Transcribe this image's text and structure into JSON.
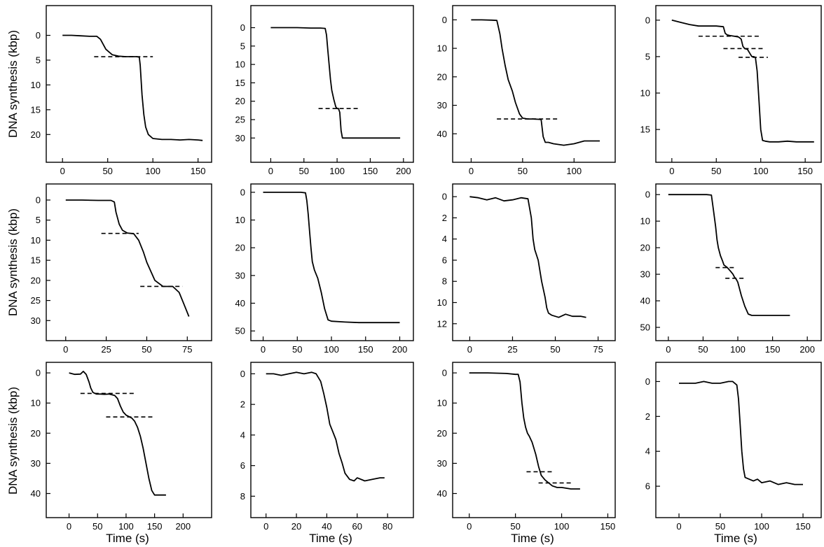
{
  "figure": {
    "ylabel": "DNA synthesis (kbp)",
    "xlabel": "Time (s)"
  },
  "chart_data": [
    {
      "type": "line",
      "row": 0,
      "col": 0,
      "xlim": [
        -18,
        165
      ],
      "ylim": [
        -6,
        25.6
      ],
      "xticks": [
        0,
        50,
        100,
        150
      ],
      "yticks": [
        0,
        5,
        10,
        15,
        20
      ],
      "ylabel_shown": true,
      "xlabel_shown": false,
      "series": [
        {
          "x": [
            0,
            10,
            20,
            30,
            38,
            42,
            48,
            55,
            62,
            70,
            78,
            82,
            85,
            86,
            88,
            90,
            92,
            95,
            100,
            110,
            120,
            130,
            140,
            150,
            155
          ],
          "y": [
            0,
            0,
            0.1,
            0.2,
            0.2,
            0.8,
            2.8,
            3.9,
            4.2,
            4.3,
            4.3,
            4.3,
            4.4,
            6,
            12,
            16,
            18.5,
            20,
            20.8,
            21,
            21,
            21.1,
            21.0,
            21.1,
            21.2
          ]
        }
      ],
      "dashes": [
        {
          "x0": 35,
          "x1": 100,
          "y": 4.3
        }
      ]
    },
    {
      "type": "line",
      "row": 0,
      "col": 1,
      "xlim": [
        -30,
        215
      ],
      "ylim": [
        -6,
        36.6
      ],
      "xticks": [
        0,
        50,
        100,
        150,
        200
      ],
      "yticks": [
        0,
        5,
        10,
        15,
        20,
        25,
        30
      ],
      "ylabel_shown": false,
      "xlabel_shown": false,
      "series": [
        {
          "x": [
            0,
            20,
            40,
            60,
            75,
            82,
            84,
            86,
            88,
            90,
            92,
            95,
            98,
            100,
            102,
            104,
            106,
            108,
            112,
            130,
            150,
            170,
            190,
            195
          ],
          "y": [
            0,
            0,
            0,
            0.1,
            0.1,
            0.2,
            2,
            6,
            10,
            14,
            17,
            19.5,
            21.5,
            22,
            22,
            23,
            28,
            30,
            30,
            30,
            30,
            30,
            30,
            30
          ]
        }
      ],
      "dashes": [
        {
          "x0": 72,
          "x1": 132,
          "y": 22
        }
      ]
    },
    {
      "type": "line",
      "row": 0,
      "col": 2,
      "xlim": [
        -18,
        140
      ],
      "ylim": [
        -5,
        50
      ],
      "xticks": [
        0,
        50,
        100
      ],
      "yticks": [
        0,
        10,
        20,
        30,
        40
      ],
      "ylabel_shown": false,
      "xlabel_shown": false,
      "series": [
        {
          "x": [
            0,
            10,
            20,
            25,
            28,
            30,
            33,
            36,
            40,
            43,
            47,
            50,
            55,
            60,
            65,
            68,
            70,
            72,
            75,
            80,
            90,
            100,
            110,
            120,
            125
          ],
          "y": [
            0,
            0,
            0.1,
            0.2,
            5,
            10,
            16,
            21,
            25,
            29,
            33,
            34.5,
            34.8,
            34.8,
            34.9,
            35,
            41,
            43,
            43,
            43.5,
            44,
            43.5,
            42.5,
            42.5,
            42.5
          ]
        }
      ],
      "dashes": [
        {
          "x0": 25,
          "x1": 85,
          "y": 34.8
        }
      ]
    },
    {
      "type": "line",
      "row": 0,
      "col": 3,
      "xlim": [
        -18,
        168
      ],
      "ylim": [
        -2,
        19.5
      ],
      "xticks": [
        0,
        50,
        100,
        150
      ],
      "yticks": [
        0,
        5,
        10,
        15
      ],
      "ylabel_shown": false,
      "xlabel_shown": false,
      "series": [
        {
          "x": [
            0,
            10,
            20,
            30,
            40,
            50,
            58,
            60,
            62,
            65,
            70,
            75,
            78,
            80,
            82,
            85,
            88,
            90,
            92,
            94,
            96,
            98,
            100,
            102,
            105,
            110,
            120,
            130,
            140,
            150,
            160
          ],
          "y": [
            0,
            0.3,
            0.6,
            0.8,
            0.8,
            0.8,
            0.9,
            1.8,
            2.0,
            2.1,
            2.2,
            2.3,
            2.6,
            3.6,
            3.9,
            4.0,
            4.6,
            5.0,
            5.0,
            5.1,
            7,
            11,
            15,
            16.5,
            16.6,
            16.7,
            16.7,
            16.6,
            16.7,
            16.7,
            16.7
          ]
        }
      ],
      "dashes": [
        {
          "x0": 30,
          "x1": 100,
          "y": 2.2
        },
        {
          "x0": 58,
          "x1": 105,
          "y": 3.9
        },
        {
          "x0": 75,
          "x1": 108,
          "y": 5.1
        }
      ]
    },
    {
      "type": "line",
      "row": 1,
      "col": 0,
      "xlim": [
        -12,
        90
      ],
      "ylim": [
        -4,
        35
      ],
      "xticks": [
        0,
        25,
        50,
        75
      ],
      "yticks": [
        0,
        5,
        10,
        15,
        20,
        25,
        30
      ],
      "ylabel_shown": true,
      "xlabel_shown": false,
      "series": [
        {
          "x": [
            0,
            10,
            20,
            28,
            30,
            31,
            33,
            35,
            38,
            42,
            45,
            48,
            50,
            55,
            60,
            63,
            66,
            70,
            73,
            76
          ],
          "y": [
            0,
            0,
            0.1,
            0.1,
            0.5,
            3,
            6,
            7.5,
            8.2,
            8.4,
            10,
            13,
            15.5,
            20,
            21.5,
            21.5,
            21.5,
            23,
            26,
            29
          ]
        }
      ],
      "dashes": [
        {
          "x0": 22,
          "x1": 45,
          "y": 8.3
        },
        {
          "x0": 46,
          "x1": 72,
          "y": 21.5
        }
      ]
    },
    {
      "type": "line",
      "row": 1,
      "col": 1,
      "xlim": [
        -18,
        220
      ],
      "ylim": [
        -3,
        53.5
      ],
      "xticks": [
        0,
        50,
        100,
        150,
        200
      ],
      "yticks": [
        0,
        10,
        20,
        30,
        40,
        50
      ],
      "ylabel_shown": false,
      "xlabel_shown": false,
      "series": [
        {
          "x": [
            0,
            20,
            40,
            55,
            62,
            64,
            66,
            68,
            70,
            72,
            75,
            80,
            85,
            90,
            95,
            100,
            120,
            140,
            160,
            180,
            200
          ],
          "y": [
            0,
            0,
            0,
            0,
            0.2,
            3,
            8,
            14,
            20,
            25,
            28,
            31,
            36,
            42,
            46,
            46.5,
            46.8,
            47,
            47,
            47,
            47
          ]
        }
      ],
      "dashes": []
    },
    {
      "type": "line",
      "row": 1,
      "col": 2,
      "xlim": [
        -10,
        85
      ],
      "ylim": [
        -1.2,
        13.6
      ],
      "xticks": [
        0,
        25,
        50,
        75
      ],
      "yticks": [
        0,
        2,
        4,
        6,
        8,
        10,
        12
      ],
      "ylabel_shown": false,
      "xlabel_shown": false,
      "series": [
        {
          "x": [
            0,
            5,
            10,
            15,
            20,
            25,
            30,
            34,
            36,
            37,
            38,
            40,
            42,
            44,
            45,
            46,
            48,
            52,
            56,
            60,
            65,
            68
          ],
          "y": [
            0,
            0.1,
            0.3,
            0.1,
            0.4,
            0.3,
            0.1,
            0.2,
            2,
            4,
            5,
            6,
            8,
            9.5,
            10.5,
            11,
            11.2,
            11.4,
            11.1,
            11.3,
            11.3,
            11.4
          ]
        }
      ],
      "dashes": []
    },
    {
      "type": "line",
      "row": 1,
      "col": 3,
      "xlim": [
        -18,
        220
      ],
      "ylim": [
        -4,
        55
      ],
      "xticks": [
        0,
        50,
        100,
        150,
        200
      ],
      "yticks": [
        0,
        10,
        20,
        30,
        40,
        50
      ],
      "ylabel_shown": false,
      "xlabel_shown": false,
      "series": [
        {
          "x": [
            0,
            20,
            40,
            55,
            62,
            65,
            68,
            70,
            72,
            75,
            78,
            80,
            85,
            90,
            93,
            95,
            98,
            100,
            105,
            110,
            115,
            120,
            140,
            160,
            175
          ],
          "y": [
            0,
            0,
            0,
            0,
            0.2,
            6,
            12,
            17,
            20,
            23,
            25,
            26.5,
            27.5,
            29,
            30,
            31,
            32,
            33,
            38,
            42,
            45,
            45.5,
            45.5,
            45.5,
            45.5
          ]
        }
      ],
      "dashes": [
        {
          "x0": 68,
          "x1": 98,
          "y": 27.5
        },
        {
          "x0": 82,
          "x1": 112,
          "y": 31.5
        }
      ]
    },
    {
      "type": "line",
      "row": 2,
      "col": 0,
      "xlim": [
        -40,
        250
      ],
      "ylim": [
        -3.5,
        48
      ],
      "xticks": [
        0,
        50,
        100,
        150,
        200
      ],
      "yticks": [
        0,
        10,
        20,
        30,
        40
      ],
      "ylabel_shown": true,
      "xlabel_shown": true,
      "series": [
        {
          "x": [
            0,
            10,
            20,
            25,
            30,
            35,
            38,
            42,
            48,
            55,
            62,
            70,
            80,
            85,
            90,
            95,
            100,
            105,
            110,
            115,
            120,
            125,
            130,
            135,
            140,
            145,
            150,
            160,
            170
          ],
          "y": [
            0,
            0.5,
            0.4,
            -0.5,
            0.5,
            3,
            5,
            6.5,
            7.0,
            7.0,
            7.1,
            7.0,
            7.5,
            8.5,
            11,
            13,
            14,
            14.5,
            15,
            16,
            18,
            21,
            25,
            30,
            35,
            39,
            40.5,
            40.5,
            40.5
          ]
        }
      ],
      "dashes": [
        {
          "x0": 20,
          "x1": 115,
          "y": 6.8
        },
        {
          "x0": 65,
          "x1": 150,
          "y": 14.6
        }
      ]
    },
    {
      "type": "line",
      "row": 2,
      "col": 1,
      "xlim": [
        -10,
        97
      ],
      "ylim": [
        -0.75,
        9.4
      ],
      "xticks": [
        0,
        20,
        40,
        60,
        80
      ],
      "yticks": [
        0,
        2,
        4,
        6,
        8
      ],
      "ylabel_shown": false,
      "xlabel_shown": true,
      "series": [
        {
          "x": [
            0,
            5,
            10,
            15,
            20,
            25,
            30,
            33,
            36,
            38,
            40,
            42,
            44,
            46,
            48,
            50,
            52,
            55,
            58,
            60,
            65,
            70,
            75,
            78
          ],
          "y": [
            0,
            0,
            0.1,
            0,
            -0.1,
            0,
            -0.1,
            0,
            0.5,
            1.3,
            2.2,
            3.3,
            3.8,
            4.3,
            5.2,
            5.8,
            6.5,
            6.9,
            7.0,
            6.8,
            7.0,
            6.9,
            6.8,
            6.8
          ]
        }
      ],
      "dashes": []
    },
    {
      "type": "line",
      "row": 2,
      "col": 2,
      "xlim": [
        -18,
        158
      ],
      "ylim": [
        -3.5,
        48
      ],
      "xticks": [
        0,
        50,
        100,
        150
      ],
      "yticks": [
        0,
        10,
        20,
        30,
        40
      ],
      "ylabel_shown": false,
      "xlabel_shown": true,
      "series": [
        {
          "x": [
            0,
            20,
            40,
            50,
            53,
            55,
            57,
            59,
            61,
            63,
            65,
            68,
            72,
            75,
            78,
            82,
            86,
            90,
            95,
            100,
            110,
            120
          ],
          "y": [
            0,
            0,
            0.2,
            0.5,
            0.5,
            3,
            10,
            15,
            18,
            20,
            21,
            23,
            27,
            31,
            34,
            35.5,
            36.5,
            37.5,
            38,
            38,
            38.5,
            38.5
          ]
        }
      ],
      "dashes": [
        {
          "x0": 62,
          "x1": 92,
          "y": 32.8
        },
        {
          "x0": 75,
          "x1": 110,
          "y": 36.5
        }
      ]
    },
    {
      "type": "line",
      "row": 2,
      "col": 3,
      "xlim": [
        -28,
        172
      ],
      "ylim": [
        -1.1,
        7.8
      ],
      "xticks": [
        0,
        50,
        100,
        150
      ],
      "yticks": [
        0,
        2,
        4,
        6
      ],
      "ylabel_shown": false,
      "xlabel_shown": true,
      "series": [
        {
          "x": [
            0,
            10,
            20,
            30,
            40,
            50,
            60,
            65,
            70,
            72,
            74,
            76,
            78,
            80,
            85,
            90,
            95,
            100,
            110,
            120,
            130,
            140,
            150
          ],
          "y": [
            0.1,
            0.1,
            0.1,
            0,
            0.1,
            0.1,
            0,
            0,
            0.2,
            1,
            2.5,
            4,
            5,
            5.5,
            5.6,
            5.7,
            5.6,
            5.8,
            5.7,
            5.9,
            5.8,
            5.9,
            5.9
          ]
        }
      ],
      "dashes": []
    }
  ]
}
